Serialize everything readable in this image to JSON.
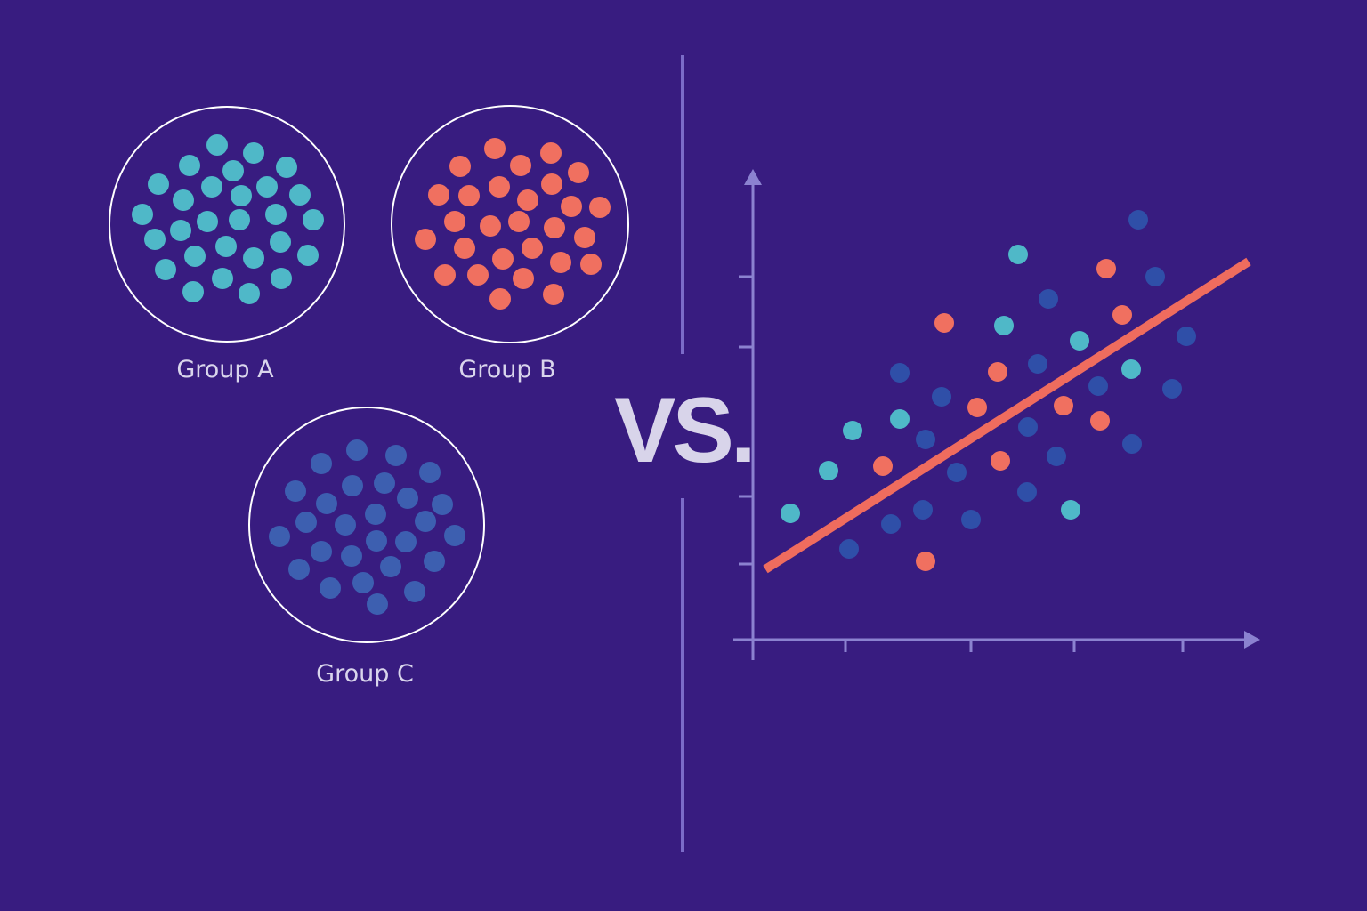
{
  "groups": [
    {
      "label": "Group A"
    },
    {
      "label": "Group B"
    },
    {
      "label": "Group C"
    }
  ],
  "versus": "VS."
}
